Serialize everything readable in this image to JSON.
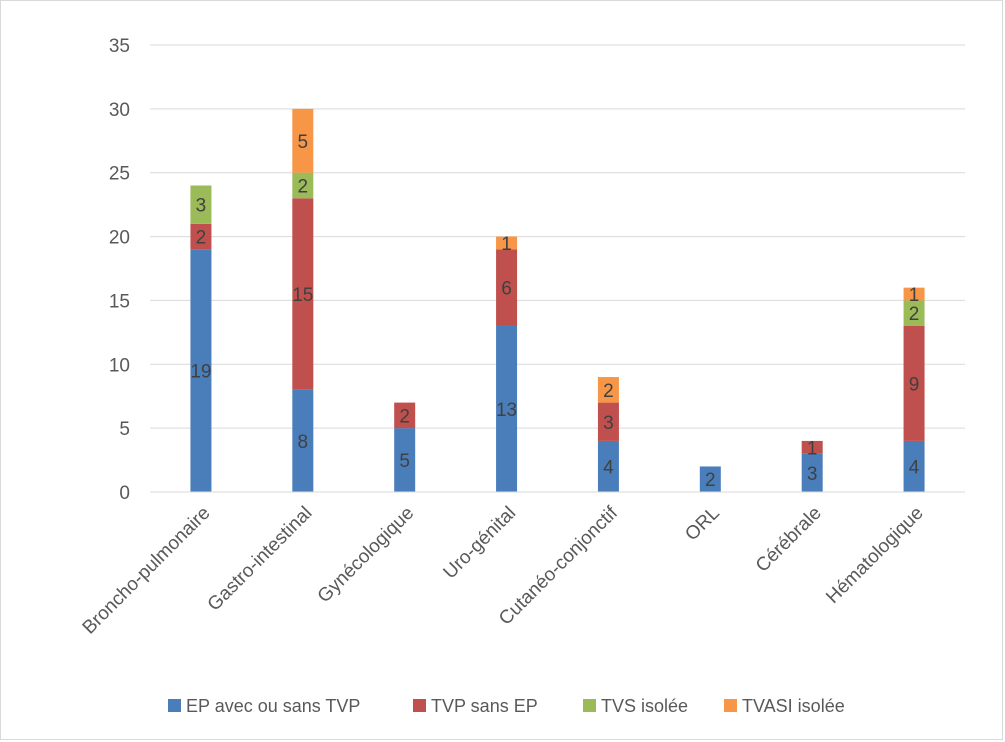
{
  "chart_data": {
    "type": "bar",
    "stacked": true,
    "categories": [
      "Broncho-pulmonaire",
      "Gastro-intestinal",
      "Gynécologique",
      "Uro-génital",
      "Cutanéo-conjonctif",
      "ORL",
      "Cérébrale",
      "Hématologique"
    ],
    "series": [
      {
        "name": "EP avec ou sans TVP",
        "color": "#4a7ebb",
        "values": [
          19,
          8,
          5,
          13,
          4,
          2,
          3,
          4
        ]
      },
      {
        "name": "TVP sans EP",
        "color": "#c0504d",
        "values": [
          2,
          15,
          2,
          6,
          3,
          0,
          1,
          9
        ]
      },
      {
        "name": "TVS isolée",
        "color": "#9bbb59",
        "values": [
          3,
          2,
          0,
          0,
          0,
          0,
          0,
          2
        ]
      },
      {
        "name": "TVASI isolée",
        "color": "#f79646",
        "values": [
          0,
          5,
          0,
          1,
          2,
          0,
          0,
          1
        ]
      }
    ],
    "data_labels": [
      [
        "19",
        "8",
        "5",
        "13",
        "4",
        "2",
        "3",
        "4"
      ],
      [
        "2",
        "15",
        "2",
        "6",
        "3",
        null,
        "1",
        "9"
      ],
      [
        "3",
        "2",
        null,
        null,
        null,
        null,
        null,
        "2"
      ],
      [
        null,
        "5",
        null,
        "1",
        "2",
        null,
        null,
        "1"
      ]
    ],
    "y_ticks": [
      "0",
      "5",
      "10",
      "15",
      "20",
      "25",
      "30",
      "35"
    ],
    "ylim": [
      0,
      35
    ],
    "grid": true,
    "legend_position": "bottom",
    "title": "",
    "xlabel": "",
    "ylabel": ""
  }
}
